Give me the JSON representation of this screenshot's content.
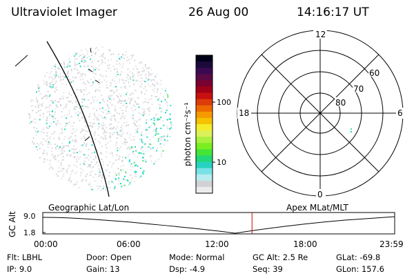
{
  "header": {
    "instrument": "Ultraviolet Imager",
    "date": "26 Aug 00",
    "time": "14:16:17 UT"
  },
  "colorbar": {
    "label": "photon cm⁻²s⁻¹",
    "ticks": [
      "100",
      "10"
    ],
    "colors": [
      "#000018",
      "#1c0a3c",
      "#3a0a50",
      "#5a0a45",
      "#7a0030",
      "#a10018",
      "#c81010",
      "#dc3c0a",
      "#ee6a00",
      "#f59a00",
      "#f5c200",
      "#f5ec2a",
      "#dcf05a",
      "#aaf040",
      "#7aee20",
      "#44e438",
      "#22d878",
      "#28d2c0",
      "#78e2e6",
      "#b8ecf0",
      "#d2d2d6",
      "#ececec"
    ]
  },
  "polar": {
    "mlt_labels": {
      "top": "12",
      "left": "18",
      "right": "6",
      "bottom": "0"
    },
    "lat_labels": [
      "60",
      "70",
      "80"
    ]
  },
  "timeline": {
    "left_label": "Geographic Lat/Lon",
    "right_label": "Apex MLat/MLT",
    "ylabel": "GC Alt",
    "y_ticks": [
      "9.0",
      "1.8"
    ],
    "x_ticks": [
      "00:00",
      "06:00",
      "12:00",
      "18:00",
      "23:59"
    ],
    "current_fraction": 0.5946
  },
  "meta": {
    "flt": "Flt:  LBHL",
    "ip": "IP:  9.0",
    "door": "Door:  Open",
    "gain": "Gain:  13",
    "mode": "Mode:  Normal",
    "dsp": "Dsp:      -4.9",
    "gcalt": "GC Alt:  2.5 Re",
    "seq": "Seq:  39",
    "glat": "GLat:  -69.8",
    "glon": "GLon:  157.6"
  },
  "accent_colors": {
    "cyan": "#22d8c0",
    "green": "#44e060",
    "red": "#cc0000"
  }
}
